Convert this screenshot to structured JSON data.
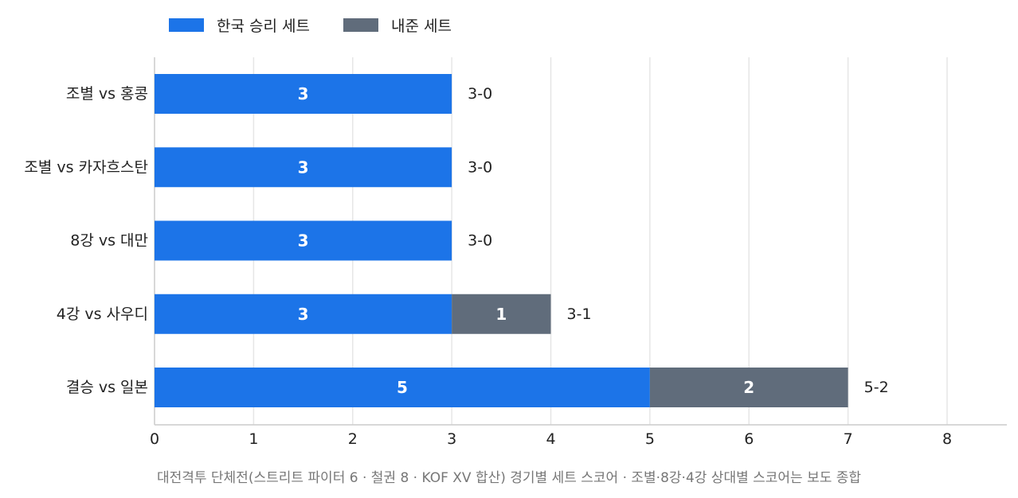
{
  "legend": {
    "win_label": "한국 승리 세트",
    "loss_label": "내준 세트"
  },
  "colors": {
    "win": "#1c74e8",
    "loss": "#606c7b",
    "grid": "#e6e6e6",
    "axis": "#cccccc"
  },
  "caption": "대전격투 단체전(스트리트 파이터 6 · 철권 8 · KOF XV 합산) 경기별 세트 스코어 · 조별·8강·4강 상대별 스코어는 보도 종합",
  "chart_data": {
    "type": "bar",
    "orientation": "horizontal",
    "stacked": true,
    "categories": [
      "조별 vs 홍콩",
      "조별 vs 카자흐스탄",
      "8강 vs 대만",
      "4강 vs 사우디",
      "결승 vs 일본"
    ],
    "series": [
      {
        "name": "한국 승리 세트",
        "values": [
          3,
          3,
          3,
          3,
          5
        ]
      },
      {
        "name": "내준 세트",
        "values": [
          0,
          0,
          0,
          1,
          2
        ]
      }
    ],
    "totals_labels": [
      "3-0",
      "3-0",
      "3-0",
      "3-1",
      "5-2"
    ],
    "xlim": [
      0,
      8
    ],
    "xticks": [
      "0",
      "1",
      "2",
      "3",
      "4",
      "5",
      "6",
      "7",
      "8"
    ],
    "grid": true,
    "legend_position": "top-left"
  }
}
